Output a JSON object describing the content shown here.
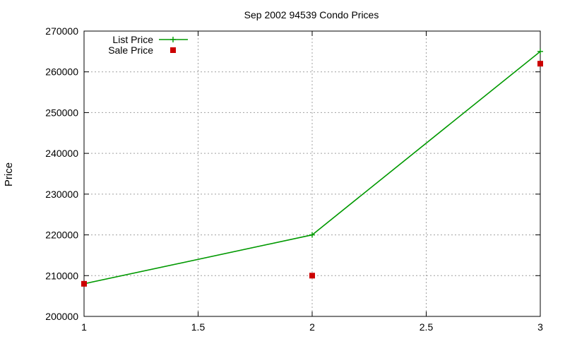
{
  "chart_data": {
    "type": "line",
    "title": "Sep 2002 94539 Condo Prices",
    "xlabel": "",
    "ylabel": "Price",
    "xlim": [
      1,
      3
    ],
    "ylim": [
      200000,
      270000
    ],
    "x_ticks": [
      1,
      1.5,
      2,
      2.5,
      3
    ],
    "x_tick_labels": [
      "1",
      "1.5",
      "2",
      "2.5",
      "3"
    ],
    "y_ticks": [
      200000,
      210000,
      220000,
      230000,
      240000,
      250000,
      260000,
      270000
    ],
    "y_tick_labels": [
      "200000",
      "210000",
      "220000",
      "230000",
      "240000",
      "250000",
      "260000",
      "270000"
    ],
    "grid": true,
    "legend_position": "top-left",
    "series": [
      {
        "name": "List Price",
        "style": "lines-with-plus-markers",
        "color": "#009900",
        "x": [
          1,
          2,
          3
        ],
        "y": [
          208000,
          220000,
          265000
        ]
      },
      {
        "name": "Sale Price",
        "style": "square-points",
        "color": "#cc0000",
        "x": [
          1,
          2,
          3
        ],
        "y": [
          208000,
          210000,
          262000
        ]
      }
    ]
  }
}
